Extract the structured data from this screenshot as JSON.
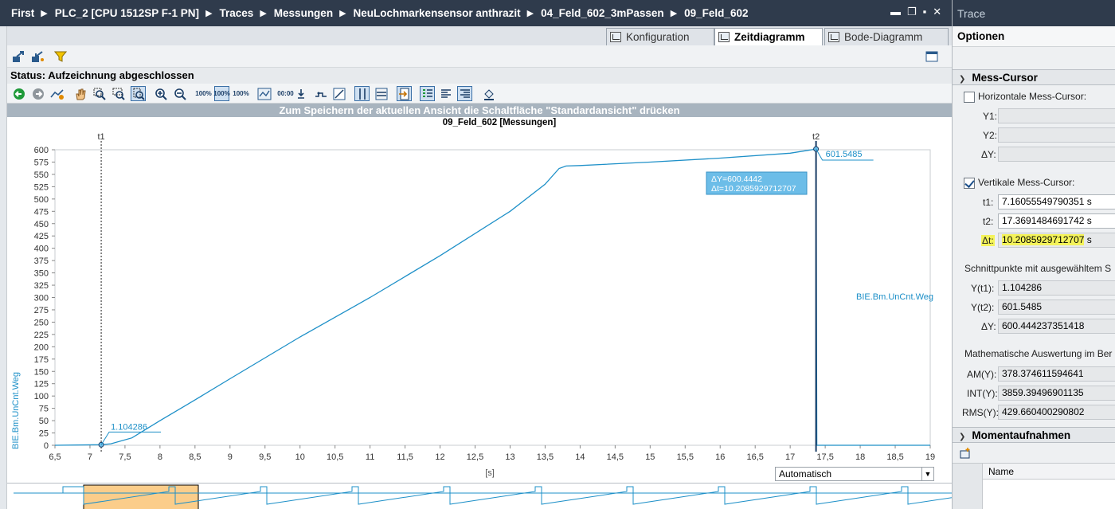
{
  "breadcrumb": [
    "First",
    "PLC_2 [CPU 1512SP F-1 PN]",
    "Traces",
    "Messungen",
    "NeuLochmarkensensor anthrazit",
    "04_Feld_602_3mPassen",
    "09_Feld_602"
  ],
  "window_controls": [
    "▬",
    "❐",
    "▪",
    "✕"
  ],
  "tabs": [
    {
      "label": "Konfiguration",
      "active": false
    },
    {
      "label": "Zeitdiagramm",
      "active": true
    },
    {
      "label": "Bode-Diagramm",
      "active": false
    }
  ],
  "status": {
    "text": "Status: Aufzeichnung abgeschlossen"
  },
  "hint": "Zum Speichern der aktuellen Ansicht die Schaltfläche \"Standardansicht\" drücken",
  "chart_title": "09_Feld_602 [Messungen]",
  "toolbar2_labels": {
    "zoom100": "100%",
    "y100": "100%",
    "x100": "100%",
    "mode": "00:00"
  },
  "chart_data": {
    "type": "line",
    "title": "09_Feld_602 [Messungen]",
    "xlabel": "[s]",
    "ylabel": "BIE.Bm.UnCnt.Weg",
    "xlim": [
      6.5,
      19
    ],
    "ylim": [
      0,
      600
    ],
    "xticks": [
      "6,5",
      "7",
      "7,5",
      "8",
      "8,5",
      "9",
      "9,5",
      "10",
      "10,5",
      "11",
      "11,5",
      "12",
      "12,5",
      "13",
      "13,5",
      "14",
      "14,5",
      "15",
      "15,5",
      "16",
      "16,5",
      "17",
      "17,5",
      "18",
      "18,5",
      "19"
    ],
    "yticks": [
      "0",
      "25",
      "50",
      "75",
      "100",
      "125",
      "150",
      "175",
      "200",
      "225",
      "250",
      "275",
      "300",
      "325",
      "350",
      "375",
      "400",
      "425",
      "450",
      "475",
      "500",
      "525",
      "550",
      "575",
      "600"
    ],
    "grid": true,
    "series": [
      {
        "name": "BIE.Bm.UnCnt.Weg",
        "color": "#1e90c8",
        "x": [
          6.5,
          7.16,
          7.3,
          7.6,
          8.0,
          8.5,
          9.0,
          10.0,
          11.0,
          12.0,
          13.0,
          13.5,
          13.7,
          13.8,
          14.0,
          15.0,
          16.0,
          17.0,
          17.369,
          17.38,
          19.0
        ],
        "y": [
          0,
          1.1,
          3,
          15,
          50,
          92,
          135,
          220,
          300,
          385,
          475,
          530,
          562,
          567,
          568,
          575,
          583,
          593,
          601.5,
          0,
          0
        ]
      }
    ],
    "cursors": [
      {
        "label": "t1",
        "x": 7.16055549790351,
        "value_label": "1.104286",
        "style": "dashed"
      },
      {
        "label": "t2",
        "x": 17.3691484691742,
        "value_label": "601.5485",
        "style": "solid"
      }
    ],
    "delta_box": {
      "dy": "ΔY=600.4442",
      "dt": "Δt=10.2085929712707"
    }
  },
  "dropdown": {
    "value": "Automatisch"
  },
  "right_panel": {
    "title": "Trace",
    "options": "Optionen",
    "mess_cursor": {
      "header": "Mess-Cursor",
      "horizontal": {
        "label": "Horizontale Mess-Cursor:",
        "checked": false
      },
      "y1_label": "Y1:",
      "y2_label": "Y2:",
      "dy_label": "ΔY:",
      "vertical": {
        "label": "Vertikale Mess-Cursor:",
        "checked": true
      },
      "t1_label": "t1:",
      "t1": "7.16055549790351 s",
      "t2_label": "t2:",
      "t2": "17.3691484691742 s",
      "dt_label": "Δt:",
      "dt_highlight": "10.2085929712707",
      "dt_unit": "s",
      "schnitt": "Schnittpunkte mit ausgewähltem S",
      "yt1_label": "Y(t1):",
      "yt1": "1.104286",
      "yt2_label": "Y(t2):",
      "yt2": "601.5485",
      "dy2_label": "ΔY:",
      "dy2": "600.444237351418",
      "math": "Mathematische Auswertung im Ber",
      "am_label": "AM(Y):",
      "am": "378.374611594641",
      "int_label": "INT(Y):",
      "int": "3859.39496901135",
      "rms_label": "RMS(Y):",
      "rms": "429.660400290802"
    },
    "moment": {
      "header": "Momentaufnahmen",
      "col_name": "Name"
    }
  }
}
